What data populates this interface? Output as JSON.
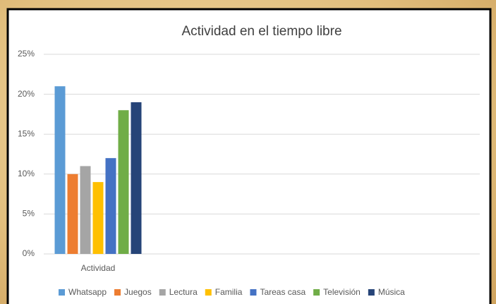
{
  "chart_data": {
    "type": "bar",
    "title": "Actividad en el tiempo libre",
    "categories": [
      "Actividad"
    ],
    "series": [
      {
        "name": "Whatsapp",
        "color": "#5b9bd5",
        "values": [
          21
        ]
      },
      {
        "name": "Juegos",
        "color": "#ed7d31",
        "values": [
          10
        ]
      },
      {
        "name": "Lectura",
        "color": "#a5a5a5",
        "values": [
          11
        ]
      },
      {
        "name": "Familia",
        "color": "#ffc000",
        "values": [
          9
        ]
      },
      {
        "name": "Tareas casa",
        "color": "#4472c4",
        "values": [
          12
        ]
      },
      {
        "name": "Televisión",
        "color": "#70ad47",
        "values": [
          18
        ]
      },
      {
        "name": "Música",
        "color": "#264478",
        "values": [
          19
        ]
      }
    ],
    "ylim": [
      0,
      25
    ],
    "yticks": [
      {
        "value": 0,
        "label": "0%"
      },
      {
        "value": 5,
        "label": "5%"
      },
      {
        "value": 10,
        "label": "10%"
      },
      {
        "value": 15,
        "label": "15%"
      },
      {
        "value": 20,
        "label": "20%"
      },
      {
        "value": 25,
        "label": "25%"
      }
    ],
    "grid": true,
    "legend": "bottom"
  }
}
